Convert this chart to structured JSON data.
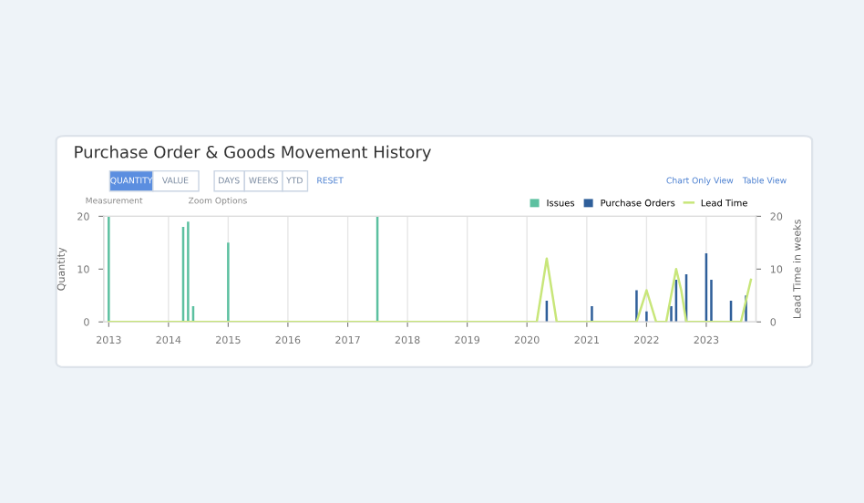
{
  "chart_data": {
    "type": "bar",
    "title": "Purchase Order & Goods Movement History",
    "annotations": [
      "QUANTITY",
      "VALUE",
      "Measurement",
      "DAYS",
      "WEEKS",
      "YTD",
      "RESET",
      "Zoom Options",
      "Chart Only View",
      "Table View"
    ],
    "series": [
      {
        "name": "Issues",
        "color": "#5cc0a0",
        "x": [
          "2013-01",
          "2014-04",
          "2014-05",
          "2014-06",
          "2015-01",
          "2017-07"
        ],
        "values": [
          20,
          18,
          19,
          3,
          15,
          20
        ]
      },
      {
        "name": "Purchase Orders",
        "color": "#2f5f9a",
        "x": [
          "2020-05",
          "2021-02",
          "2021-11",
          "2022-01",
          "2022-06",
          "2022-07",
          "2022-09",
          "2023-01",
          "2023-02",
          "2023-06",
          "2023-09"
        ],
        "values": [
          4,
          3,
          6,
          2,
          3,
          8,
          9,
          13,
          8,
          4,
          5
        ]
      },
      {
        "name": "Lead Time",
        "color": "#c8e67a",
        "type": "line",
        "axis": "y2",
        "line_style": "solid",
        "x": [
          "2013-01",
          "2020-03",
          "2020-05",
          "2020-07",
          "2021-11",
          "2022-01",
          "2022-03",
          "2022-05",
          "2022-07",
          "2022-08",
          "2022-09",
          "2023-08",
          "2023-10"
        ],
        "values": [
          0,
          0,
          12,
          0,
          0,
          6,
          0,
          0,
          10,
          6,
          0,
          0,
          8
        ]
      }
    ],
    "xlim": [
      "2012-12-01",
      "2023-11-01"
    ],
    "xticks": [
      {
        "value": "2013-01-01",
        "label": "2013"
      },
      {
        "value": "2014-01-01",
        "label": "2014"
      },
      {
        "value": "2015-01-01",
        "label": "2015"
      },
      {
        "value": "2016-01-01",
        "label": "2016"
      },
      {
        "value": "2017-01-01",
        "label": "2017"
      },
      {
        "value": "2018-01-01",
        "label": "2018"
      },
      {
        "value": "2019-01-01",
        "label": "2019"
      },
      {
        "value": "2020-01-01",
        "label": "2020"
      },
      {
        "value": "2021-01-01",
        "label": "2021"
      },
      {
        "value": "2022-01-01",
        "label": "2022"
      },
      {
        "value": "2023-01-01",
        "label": "2023"
      }
    ],
    "ylim": [
      0,
      20
    ],
    "yticks": [
      0,
      10,
      20
    ],
    "ylabel": "Quantity",
    "y2lim": [
      0,
      20
    ],
    "y2ticks": [
      0,
      10,
      20
    ],
    "y2label": "Lead Time in weeks",
    "grid": "x",
    "legend": "top right"
  }
}
